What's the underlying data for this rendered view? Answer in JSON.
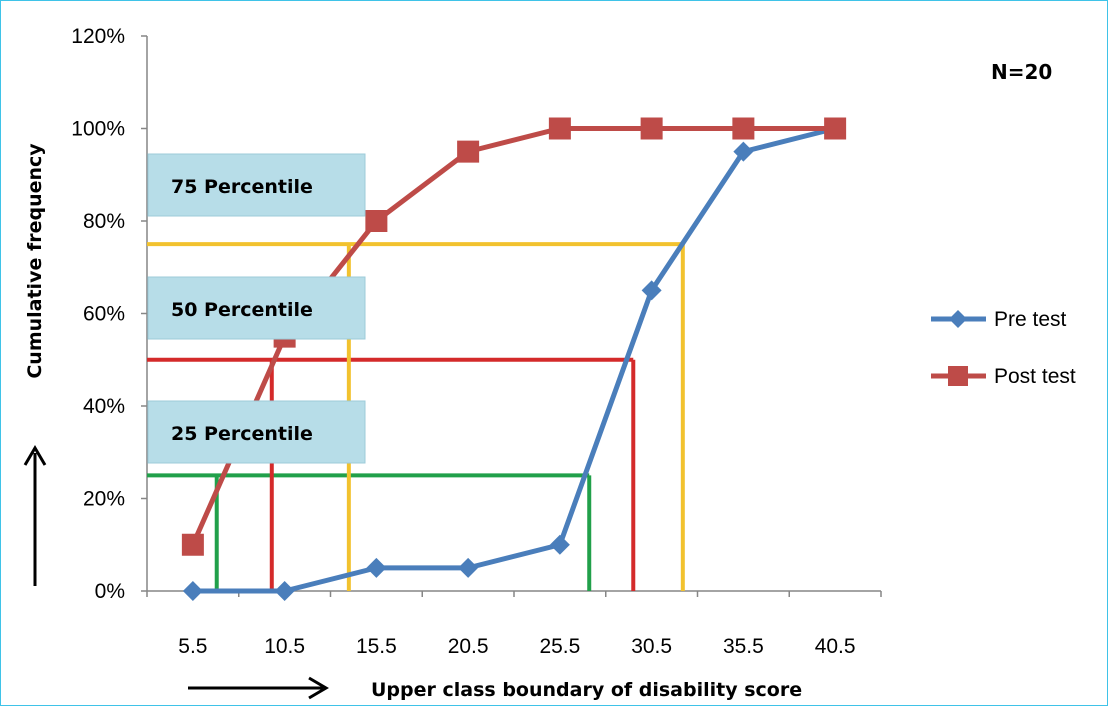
{
  "chart_data": {
    "type": "line",
    "xlabel": "Upper class boundary of disability  score",
    "ylabel": "Cumulative frequency",
    "categories": [
      "5.5",
      "10.5",
      "15.5",
      "20.5",
      "25.5",
      "30.5",
      "35.5",
      "40.5"
    ],
    "ylim": [
      0,
      120
    ],
    "y_ticks": [
      "0%",
      "20%",
      "40%",
      "60%",
      "80%",
      "100%",
      "120%"
    ],
    "y_unit": "%",
    "grid": false,
    "legend_position": "right",
    "series": [
      {
        "name": "Pre test",
        "values": [
          0,
          0,
          5,
          5,
          10,
          65,
          95,
          100
        ],
        "color": "#4a7ebb",
        "marker": "diamond"
      },
      {
        "name": "Post test",
        "values": [
          10,
          55,
          80,
          95,
          100,
          100,
          100,
          100
        ],
        "color": "#be4b48",
        "marker": "square"
      }
    ],
    "annotations": {
      "sample_size": "N=20",
      "percentile_boxes": [
        {
          "label": "75 Percentile",
          "level": 75
        },
        {
          "label": "50 Percentile",
          "level": 50
        },
        {
          "label": "25 Percentile",
          "level": 25
        }
      ],
      "percentile_lines": [
        {
          "level": 25,
          "color": "#21a04a",
          "post_x": 6.8,
          "pre_x": 27.1
        },
        {
          "level": 50,
          "color": "#d42a2a",
          "post_x": 9.8,
          "pre_x": 29.5
        },
        {
          "level": 75,
          "color": "#f2c22e",
          "post_x": 14.0,
          "pre_x": 32.2
        }
      ]
    }
  }
}
